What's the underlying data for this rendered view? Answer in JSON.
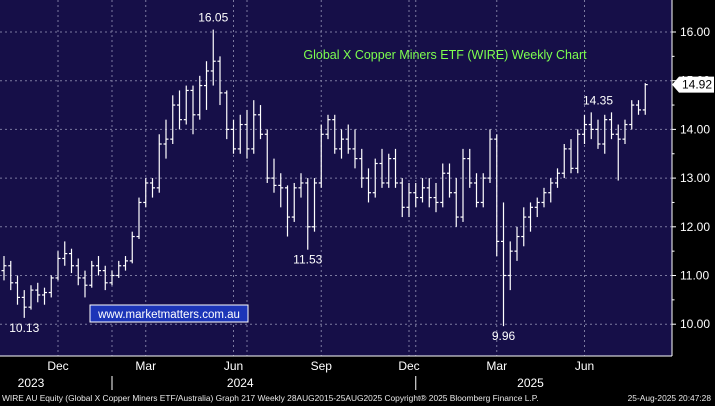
{
  "chart_data": {
    "type": "ohlc",
    "title": "Global X Copper Miners ETF (WIRE) Weekly Chart",
    "ylim": [
      9.6,
      16.6
    ],
    "y_ticks": [
      10.0,
      11.0,
      12.0,
      13.0,
      14.0,
      15.0,
      16.0
    ],
    "y_tick_labels": [
      "10.00",
      "11.00",
      "12.00",
      "13.00",
      "14.00",
      "15.00",
      "16.00"
    ],
    "x_month_labels": [
      {
        "label": "Dec",
        "week": 8
      },
      {
        "label": "Mar",
        "week": 21
      },
      {
        "label": "Jun",
        "week": 34
      },
      {
        "label": "Sep",
        "week": 47
      },
      {
        "label": "Dec",
        "week": 60
      },
      {
        "label": "Mar",
        "week": 73
      },
      {
        "label": "Jun",
        "week": 86
      }
    ],
    "x_year_labels": [
      {
        "label": "2023",
        "week": 4
      },
      {
        "label": "2024",
        "week": 35
      },
      {
        "label": "2025",
        "week": 78
      }
    ],
    "last_price": {
      "label": "14.92",
      "value": 14.92
    },
    "annotations": [
      {
        "text": "16.05",
        "week": 31,
        "value": 16.05,
        "pos": "above"
      },
      {
        "text": "10.13",
        "week": 3,
        "value": 10.13,
        "pos": "below"
      },
      {
        "text": "11.53",
        "week": 45,
        "value": 11.53,
        "pos": "below"
      },
      {
        "text": "9.96",
        "week": 74,
        "value": 9.96,
        "pos": "below"
      },
      {
        "text": "14.35",
        "week": 88,
        "value": 14.35,
        "pos": "above"
      }
    ],
    "watermark": "www.marketmatters.com.au",
    "series": [
      {
        "ohlc": [
          [
            11.1,
            11.4,
            10.9,
            11.2
          ],
          [
            11.2,
            11.3,
            10.7,
            10.85
          ],
          [
            10.85,
            11.0,
            10.4,
            10.55
          ],
          [
            10.55,
            10.7,
            10.13,
            10.35
          ],
          [
            10.35,
            10.8,
            10.3,
            10.7
          ],
          [
            10.7,
            10.85,
            10.45,
            10.6
          ],
          [
            10.6,
            10.75,
            10.4,
            10.65
          ],
          [
            10.65,
            11.0,
            10.55,
            10.95
          ],
          [
            10.95,
            11.5,
            10.9,
            11.35
          ],
          [
            11.35,
            11.7,
            11.2,
            11.45
          ],
          [
            11.45,
            11.55,
            11.05,
            11.2
          ],
          [
            11.2,
            11.35,
            10.8,
            10.95
          ],
          [
            10.95,
            11.1,
            10.55,
            10.8
          ],
          [
            10.8,
            11.3,
            10.75,
            11.2
          ],
          [
            11.2,
            11.4,
            11.0,
            11.1
          ],
          [
            11.1,
            11.2,
            10.7,
            10.85
          ],
          [
            10.85,
            11.1,
            10.8,
            11.0
          ],
          [
            11.0,
            11.3,
            10.95,
            11.2
          ],
          [
            11.2,
            11.4,
            11.1,
            11.3
          ],
          [
            11.3,
            11.9,
            11.25,
            11.8
          ],
          [
            11.8,
            12.6,
            11.75,
            12.5
          ],
          [
            12.5,
            13.0,
            12.4,
            12.9
          ],
          [
            12.9,
            13.0,
            12.6,
            12.8
          ],
          [
            12.8,
            13.9,
            12.7,
            13.7
          ],
          [
            13.7,
            14.2,
            13.4,
            13.8
          ],
          [
            13.8,
            14.7,
            13.7,
            14.5
          ],
          [
            14.5,
            14.8,
            14.0,
            14.2
          ],
          [
            14.2,
            14.9,
            14.1,
            14.8
          ],
          [
            14.8,
            14.9,
            13.9,
            14.3
          ],
          [
            14.3,
            15.1,
            14.2,
            14.9
          ],
          [
            14.9,
            15.4,
            14.4,
            15.2
          ],
          [
            15.2,
            16.05,
            14.9,
            15.4
          ],
          [
            15.4,
            15.5,
            14.5,
            14.75
          ],
          [
            14.75,
            14.8,
            13.8,
            14.0
          ],
          [
            14.0,
            14.2,
            13.5,
            13.6
          ],
          [
            13.6,
            14.3,
            13.5,
            14.1
          ],
          [
            14.1,
            14.4,
            13.4,
            13.6
          ],
          [
            13.6,
            14.6,
            13.5,
            14.3
          ],
          [
            14.3,
            14.5,
            13.8,
            13.9
          ],
          [
            13.9,
            14.0,
            12.9,
            13.0
          ],
          [
            13.0,
            13.4,
            12.7,
            12.85
          ],
          [
            12.85,
            13.1,
            12.4,
            12.8
          ],
          [
            12.8,
            12.85,
            11.8,
            12.2
          ],
          [
            12.2,
            12.9,
            12.1,
            12.8
          ],
          [
            12.8,
            13.1,
            12.6,
            12.9
          ],
          [
            12.9,
            13.0,
            11.53,
            12.0
          ],
          [
            12.0,
            13.0,
            11.9,
            12.9
          ],
          [
            12.9,
            14.1,
            12.8,
            13.9
          ],
          [
            13.9,
            14.3,
            13.8,
            14.2
          ],
          [
            14.2,
            14.3,
            13.5,
            13.6
          ],
          [
            13.6,
            14.0,
            13.4,
            13.8
          ],
          [
            13.8,
            14.1,
            13.5,
            13.6
          ],
          [
            13.6,
            14.0,
            13.2,
            13.4
          ],
          [
            13.4,
            13.6,
            12.8,
            13.0
          ],
          [
            13.0,
            13.2,
            12.5,
            12.7
          ],
          [
            12.7,
            13.4,
            12.6,
            13.3
          ],
          [
            13.3,
            13.6,
            12.8,
            12.9
          ],
          [
            12.9,
            13.5,
            12.8,
            13.4
          ],
          [
            13.4,
            13.6,
            12.8,
            12.9
          ],
          [
            12.9,
            13.0,
            12.2,
            12.4
          ],
          [
            12.4,
            12.9,
            12.2,
            12.7
          ],
          [
            12.7,
            12.9,
            12.4,
            12.6
          ],
          [
            12.6,
            13.0,
            12.5,
            12.8
          ],
          [
            12.8,
            13.0,
            12.4,
            12.6
          ],
          [
            12.6,
            12.9,
            12.3,
            12.5
          ],
          [
            12.5,
            13.3,
            12.4,
            13.1
          ],
          [
            13.1,
            13.3,
            12.6,
            12.7
          ],
          [
            12.7,
            13.0,
            12.0,
            12.2
          ],
          [
            12.2,
            13.6,
            12.1,
            13.4
          ],
          [
            13.4,
            13.6,
            12.8,
            12.9
          ],
          [
            12.9,
            13.1,
            12.4,
            12.5
          ],
          [
            12.5,
            13.1,
            12.4,
            13.0
          ],
          [
            13.0,
            14.0,
            12.9,
            13.8
          ],
          [
            13.8,
            13.9,
            11.4,
            11.7
          ],
          [
            11.7,
            12.5,
            9.96,
            11.0
          ],
          [
            11.0,
            11.7,
            10.7,
            11.5
          ],
          [
            11.5,
            12.0,
            11.3,
            11.8
          ],
          [
            11.8,
            12.4,
            11.6,
            12.2
          ],
          [
            12.2,
            12.5,
            11.9,
            12.4
          ],
          [
            12.4,
            12.6,
            12.2,
            12.5
          ],
          [
            12.5,
            12.8,
            12.4,
            12.7
          ],
          [
            12.7,
            13.0,
            12.5,
            12.9
          ],
          [
            12.9,
            13.2,
            12.8,
            13.1
          ],
          [
            13.1,
            13.7,
            13.0,
            13.6
          ],
          [
            13.6,
            13.8,
            13.1,
            13.2
          ],
          [
            13.2,
            14.0,
            13.1,
            13.9
          ],
          [
            13.9,
            14.3,
            13.7,
            14.1
          ],
          [
            14.1,
            14.35,
            13.8,
            14.0
          ],
          [
            14.0,
            14.2,
            13.6,
            13.7
          ],
          [
            13.7,
            14.3,
            13.5,
            14.2
          ],
          [
            14.2,
            14.35,
            13.8,
            13.9
          ],
          [
            13.9,
            14.1,
            12.95,
            13.8
          ],
          [
            13.8,
            14.2,
            13.7,
            14.1
          ],
          [
            14.1,
            14.6,
            14.0,
            14.5
          ],
          [
            14.5,
            14.6,
            14.3,
            14.4
          ],
          [
            14.4,
            14.95,
            14.3,
            14.92
          ]
        ]
      }
    ]
  },
  "footer": {
    "left_text": "WIRE AU Equity (Global X Copper Miners ETF/Australia) Graph 217  Weekly 28AUG2015-25AUG2025  Copyright® 2025 Bloomberg Finance L.P.",
    "right_text": "25-Aug-2025 20:47:28"
  },
  "colors": {
    "background": "#000000",
    "plot_background": "#160f48",
    "grid": "#7c7aa0",
    "bars": "#ffffff",
    "title": "#7dff4f",
    "axis_text": "#ffffff",
    "last_price_box": "#ffffff",
    "watermark_border": "#ffffff",
    "watermark_text": "#ffffff",
    "watermark_bg": "#1c35b8"
  }
}
